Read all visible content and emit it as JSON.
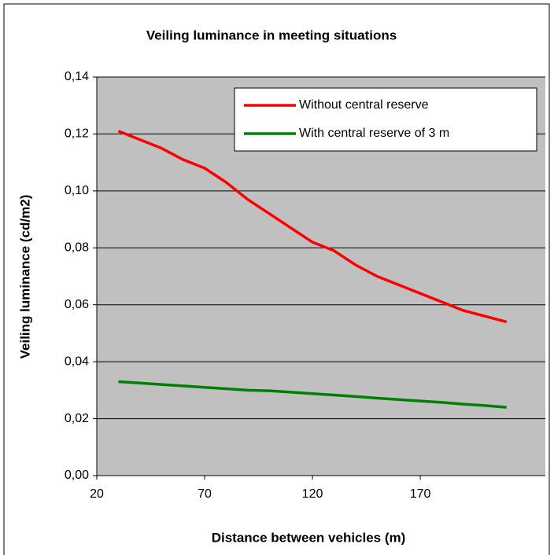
{
  "chart_data": {
    "type": "line",
    "title": "Veiling luminance in meeting situations",
    "x_label": "Distance between vehicles (m)",
    "y_label": "Veiling luminance (cd/m2)",
    "x": [
      30,
      40,
      50,
      60,
      70,
      80,
      90,
      100,
      110,
      120,
      130,
      140,
      150,
      160,
      170,
      180,
      190,
      200,
      210
    ],
    "series": [
      {
        "name": "Without central reserve",
        "color": "#ff0000",
        "values": [
          0.121,
          0.118,
          0.115,
          0.111,
          0.108,
          0.103,
          0.097,
          0.092,
          0.087,
          0.082,
          0.079,
          0.074,
          0.07,
          0.067,
          0.064,
          0.061,
          0.058,
          0.056,
          0.054
        ]
      },
      {
        "name": "With central reserve of 3 m",
        "color": "#008000",
        "values": [
          0.033,
          0.0325,
          0.032,
          0.0315,
          0.031,
          0.0305,
          0.03,
          0.0298,
          0.0293,
          0.0288,
          0.0283,
          0.0278,
          0.0272,
          0.0267,
          0.0262,
          0.0257,
          0.0251,
          0.0246,
          0.024
        ]
      }
    ],
    "xlim": [
      20,
      228
    ],
    "xticks": [
      20,
      70,
      120,
      170
    ],
    "ylim": [
      0,
      0.14
    ],
    "yticks": [
      {
        "value": 0,
        "label": "0,00"
      },
      {
        "value": 0.02,
        "label": "0,02"
      },
      {
        "value": 0.04,
        "label": "0,04"
      },
      {
        "value": 0.06,
        "label": "0,06"
      },
      {
        "value": 0.08,
        "label": "0,08"
      },
      {
        "value": 0.1,
        "label": "0,10"
      },
      {
        "value": 0.12,
        "label": "0,12"
      },
      {
        "value": 0.14,
        "label": "0,14"
      }
    ],
    "grid": true,
    "legend": "top-right",
    "background": "#c0c0c0"
  }
}
